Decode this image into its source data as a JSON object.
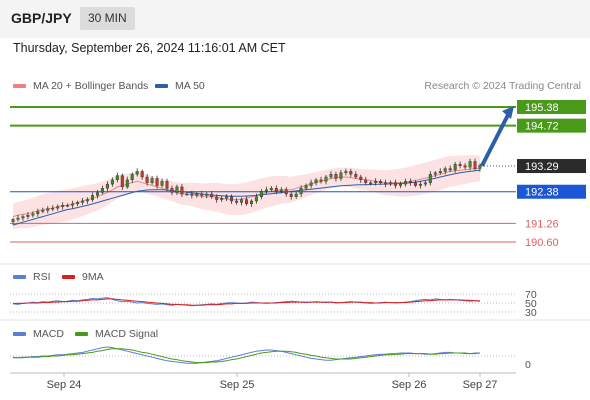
{
  "header": {
    "symbol": "GBP/JPY",
    "timeframe": "30 MIN"
  },
  "datetime": "Thursday, September 26, 2024 11:16:01 AM CET",
  "copyright": "Research © 2024 Trading Central",
  "legend": {
    "bollinger": {
      "label": "MA 20 + Bollinger Bands",
      "color": "#f08080"
    },
    "ma50": {
      "label": "MA 50",
      "color": "#2c5fa8"
    },
    "rsi": {
      "label": "RSI",
      "color": "#5b7fd6"
    },
    "rsi_ma": {
      "label": "9MA",
      "color": "#d42020"
    },
    "macd": {
      "label": "MACD",
      "color": "#5b7fd6"
    },
    "macd_signal": {
      "label": "MACD Signal",
      "color": "#4a9a1a"
    }
  },
  "chart_data": [
    {
      "type": "candlestick",
      "title": "GBP/JPY 30 MIN",
      "ylim": [
        190.1,
        195.9
      ],
      "levels": [
        {
          "value": 195.38,
          "label": "195.38",
          "kind": "target",
          "color": "#4a9a1a"
        },
        {
          "value": 194.72,
          "label": "194.72",
          "kind": "resistance",
          "color": "#4a9a1a"
        },
        {
          "value": 193.29,
          "label": "193.29",
          "kind": "last",
          "color": "#2b2b2b"
        },
        {
          "value": 192.38,
          "label": "192.38",
          "kind": "pivot",
          "color": "#1a56d6"
        },
        {
          "value": 191.26,
          "label": "191.26",
          "kind": "support",
          "color": "#e06060"
        },
        {
          "value": 190.6,
          "label": "190.60",
          "kind": "support",
          "color": "#e06060"
        }
      ],
      "close": [
        191.4,
        191.45,
        191.5,
        191.55,
        191.6,
        191.68,
        191.72,
        191.78,
        191.8,
        191.85,
        191.9,
        191.9,
        191.95,
        192.0,
        192.05,
        192.1,
        192.25,
        192.35,
        192.5,
        192.65,
        192.8,
        192.95,
        192.55,
        192.8,
        193.0,
        193.1,
        192.9,
        192.7,
        192.85,
        192.6,
        192.75,
        192.5,
        192.35,
        192.55,
        192.3,
        192.3,
        192.25,
        192.3,
        192.25,
        192.3,
        192.2,
        192.1,
        192.15,
        192.2,
        192.05,
        192.0,
        192.1,
        191.95,
        192.05,
        192.2,
        192.4,
        192.45,
        192.5,
        192.4,
        192.45,
        192.3,
        192.2,
        192.3,
        192.5,
        192.6,
        192.7,
        192.8,
        192.75,
        192.9,
        193.0,
        192.85,
        193.05,
        193.1,
        193.0,
        192.9,
        192.8,
        192.7,
        192.7,
        192.75,
        192.7,
        192.65,
        192.7,
        192.6,
        192.65,
        192.75,
        192.7,
        192.6,
        192.65,
        192.7,
        193.0,
        193.05,
        193.1,
        193.2,
        193.15,
        193.35,
        193.3,
        193.25,
        193.45,
        193.2,
        193.3
      ],
      "bollinger_middle": [
        191.5,
        191.55,
        191.58,
        191.6,
        191.65,
        191.7,
        191.75,
        191.78,
        191.8,
        191.85,
        191.88,
        191.9,
        191.95,
        192.0,
        192.05,
        192.1,
        192.15,
        192.2,
        192.28,
        192.35,
        192.45,
        192.55,
        192.6,
        192.65,
        192.7,
        192.75,
        192.7,
        192.65,
        192.6,
        192.55,
        192.5,
        192.45,
        192.4,
        192.35,
        192.3,
        192.3,
        192.28,
        192.25,
        192.22,
        192.2,
        192.2,
        192.18,
        192.15,
        192.12,
        192.1,
        192.1,
        192.12,
        192.15,
        192.2,
        192.25,
        192.3,
        192.35,
        192.4,
        192.42,
        192.45,
        192.45,
        192.45,
        192.5,
        192.55,
        192.6,
        192.65,
        192.7,
        192.75,
        192.8,
        192.85,
        192.88,
        192.9,
        192.9,
        192.88,
        192.85,
        192.82,
        192.8,
        192.78,
        192.75,
        192.72,
        192.7,
        192.7,
        192.7,
        192.7,
        192.72,
        192.75,
        192.78,
        192.82,
        192.86,
        192.9,
        192.95,
        193.0,
        193.05,
        193.1,
        193.12,
        193.14,
        193.16,
        193.18,
        193.2,
        193.2
      ],
      "bollinger_band_width": 0.45,
      "ma50": [
        191.2,
        191.25,
        191.3,
        191.35,
        191.4,
        191.45,
        191.5,
        191.55,
        191.6,
        191.65,
        191.7,
        191.75,
        191.78,
        191.82,
        191.86,
        191.9,
        191.95,
        192.0,
        192.05,
        192.1,
        192.15,
        192.2,
        192.25,
        192.3,
        192.35,
        192.4,
        192.42,
        192.44,
        192.45,
        192.45,
        192.45,
        192.44,
        192.42,
        192.4,
        192.38,
        192.36,
        192.34,
        192.32,
        192.3,
        192.28,
        192.26,
        192.25,
        192.24,
        192.23,
        192.22,
        192.22,
        192.22,
        192.23,
        192.24,
        192.25,
        192.27,
        192.29,
        192.31,
        192.33,
        192.35,
        192.37,
        192.39,
        192.41,
        192.43,
        192.45,
        192.47,
        192.49,
        192.51,
        192.53,
        192.55,
        192.57,
        192.59,
        192.6,
        192.61,
        192.62,
        192.63,
        192.63,
        192.64,
        192.64,
        192.65,
        192.65,
        192.66,
        192.66,
        192.67,
        192.68,
        192.7,
        192.72,
        192.75,
        192.78,
        192.82,
        192.86,
        192.9,
        192.94,
        192.98,
        193.02,
        193.05,
        193.08,
        193.1,
        193.12,
        193.14
      ]
    },
    {
      "type": "line",
      "title": "RSI",
      "ylim": [
        30,
        70
      ],
      "ticks": [
        "70",
        "50",
        "30"
      ],
      "series": [
        {
          "name": "RSI",
          "values": [
            48,
            47,
            49,
            50,
            52,
            51,
            53,
            52,
            54,
            55,
            53,
            54,
            56,
            55,
            57,
            58,
            60,
            59,
            61,
            62,
            58,
            55,
            53,
            54,
            52,
            50,
            51,
            49,
            48,
            47,
            48,
            46,
            45,
            47,
            46,
            45,
            44,
            45,
            46,
            47,
            48,
            47,
            49,
            50,
            51,
            50,
            49,
            50,
            52,
            51,
            50,
            49,
            50,
            51,
            52,
            53,
            54,
            53,
            52,
            51,
            52,
            53,
            52,
            51,
            52,
            50,
            51,
            52,
            53,
            52,
            51,
            50,
            49,
            50,
            51,
            52,
            51,
            50,
            51,
            52,
            53,
            55,
            57,
            58,
            57,
            59,
            58,
            57,
            58,
            57,
            56,
            55,
            54,
            55,
            54
          ]
        },
        {
          "name": "9MA",
          "values": [
            49,
            49,
            49,
            50,
            50,
            50,
            51,
            51,
            52,
            52,
            53,
            53,
            54,
            54,
            55,
            56,
            57,
            57,
            58,
            59,
            59,
            58,
            57,
            56,
            55,
            54,
            53,
            52,
            51,
            50,
            49,
            48,
            47,
            47,
            46,
            46,
            45,
            45,
            45,
            46,
            46,
            46,
            47,
            48,
            48,
            49,
            49,
            49,
            50,
            50,
            50,
            50,
            50,
            50,
            51,
            51,
            52,
            52,
            52,
            52,
            52,
            52,
            52,
            52,
            52,
            51,
            51,
            51,
            52,
            52,
            52,
            51,
            51,
            50,
            50,
            51,
            51,
            51,
            51,
            51,
            52,
            53,
            54,
            55,
            55,
            56,
            57,
            57,
            57,
            57,
            57,
            56,
            56,
            55,
            55
          ]
        }
      ]
    },
    {
      "type": "line",
      "title": "MACD",
      "ticks": [
        "0"
      ],
      "series": [
        {
          "name": "MACD",
          "values": [
            -0.02,
            -0.03,
            -0.02,
            -0.02,
            -0.01,
            -0.01,
            0.0,
            0.0,
            0.01,
            0.02,
            0.02,
            0.03,
            0.04,
            0.05,
            0.06,
            0.08,
            0.1,
            0.12,
            0.14,
            0.15,
            0.14,
            0.12,
            0.1,
            0.08,
            0.06,
            0.04,
            0.02,
            0.0,
            -0.02,
            -0.04,
            -0.06,
            -0.08,
            -0.09,
            -0.1,
            -0.11,
            -0.12,
            -0.12,
            -0.12,
            -0.11,
            -0.1,
            -0.09,
            -0.08,
            -0.06,
            -0.04,
            -0.02,
            0.0,
            0.02,
            0.04,
            0.06,
            0.08,
            0.09,
            0.1,
            0.1,
            0.09,
            0.08,
            0.06,
            0.04,
            0.02,
            0.0,
            -0.02,
            -0.04,
            -0.05,
            -0.06,
            -0.07,
            -0.07,
            -0.06,
            -0.05,
            -0.04,
            -0.03,
            -0.02,
            -0.01,
            0.0,
            0.01,
            0.02,
            0.03,
            0.03,
            0.04,
            0.04,
            0.05,
            0.05,
            0.05,
            0.04,
            0.04,
            0.03,
            0.03,
            0.04,
            0.05,
            0.06,
            0.06,
            0.05,
            0.05,
            0.04,
            0.04,
            0.05,
            0.05
          ]
        },
        {
          "name": "MACD Signal",
          "values": [
            -0.03,
            -0.03,
            -0.03,
            -0.02,
            -0.02,
            -0.02,
            -0.01,
            -0.01,
            0.0,
            0.0,
            0.01,
            0.02,
            0.02,
            0.03,
            0.04,
            0.05,
            0.06,
            0.08,
            0.09,
            0.11,
            0.12,
            0.12,
            0.12,
            0.11,
            0.1,
            0.08,
            0.06,
            0.05,
            0.03,
            0.01,
            -0.01,
            -0.03,
            -0.05,
            -0.06,
            -0.08,
            -0.09,
            -0.1,
            -0.11,
            -0.11,
            -0.11,
            -0.1,
            -0.1,
            -0.09,
            -0.08,
            -0.06,
            -0.05,
            -0.03,
            -0.01,
            0.01,
            0.03,
            0.05,
            0.06,
            0.07,
            0.08,
            0.08,
            0.08,
            0.07,
            0.06,
            0.04,
            0.03,
            0.01,
            0.0,
            -0.02,
            -0.03,
            -0.04,
            -0.05,
            -0.05,
            -0.05,
            -0.05,
            -0.04,
            -0.03,
            -0.02,
            -0.01,
            0.0,
            0.01,
            0.02,
            0.02,
            0.03,
            0.03,
            0.04,
            0.04,
            0.04,
            0.04,
            0.04,
            0.03,
            0.03,
            0.04,
            0.04,
            0.05,
            0.05,
            0.05,
            0.05,
            0.04,
            0.04,
            0.05
          ]
        }
      ]
    }
  ],
  "xaxis": {
    "labels": [
      "Sep 24",
      "Sep 25",
      "Sep 26",
      "Sep 27"
    ]
  }
}
